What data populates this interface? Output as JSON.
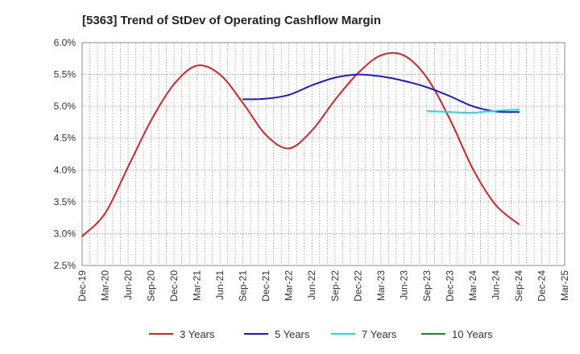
{
  "chart_data": {
    "type": "line",
    "title": "[5363]  Trend of StDev of Operating Cashflow Margin",
    "xlabel": "",
    "ylabel": "",
    "x_ticks": [
      "Dec-19",
      "Mar-20",
      "Jun-20",
      "Sep-20",
      "Dec-20",
      "Mar-21",
      "Jun-21",
      "Sep-21",
      "Dec-21",
      "Mar-22",
      "Jun-22",
      "Sep-22",
      "Dec-22",
      "Mar-23",
      "Jun-23",
      "Sep-23",
      "Dec-23",
      "Mar-24",
      "Jun-24",
      "Sep-24",
      "Dec-24",
      "Mar-25"
    ],
    "y_ticks": [
      "2.5%",
      "3.0%",
      "3.5%",
      "4.0%",
      "4.5%",
      "5.0%",
      "5.5%",
      "6.0%"
    ],
    "ylim": [
      2.5,
      6.0
    ],
    "grid": true,
    "legend_position": "bottom",
    "series": [
      {
        "name": "3 Years",
        "color": "#dd2222",
        "points": [
          [
            "Dec-19",
            2.96
          ],
          [
            "Mar-20",
            3.32
          ],
          [
            "Jun-20",
            4.05
          ],
          [
            "Sep-20",
            4.78
          ],
          [
            "Dec-20",
            5.35
          ],
          [
            "Mar-21",
            5.64
          ],
          [
            "Jun-21",
            5.5
          ],
          [
            "Sep-21",
            5.05
          ],
          [
            "Dec-21",
            4.55
          ],
          [
            "Mar-22",
            4.34
          ],
          [
            "Jun-22",
            4.62
          ],
          [
            "Sep-22",
            5.1
          ],
          [
            "Dec-22",
            5.52
          ],
          [
            "Mar-23",
            5.8
          ],
          [
            "Jun-23",
            5.8
          ],
          [
            "Sep-23",
            5.45
          ],
          [
            "Dec-23",
            4.8
          ],
          [
            "Mar-24",
            4.02
          ],
          [
            "Jun-24",
            3.45
          ],
          [
            "Sep-24",
            3.15
          ]
        ]
      },
      {
        "name": "5 Years",
        "color": "#1a1acc",
        "points": [
          [
            "Sep-21",
            5.11
          ],
          [
            "Dec-21",
            5.12
          ],
          [
            "Mar-22",
            5.18
          ],
          [
            "Jun-22",
            5.33
          ],
          [
            "Sep-22",
            5.45
          ],
          [
            "Dec-22",
            5.5
          ],
          [
            "Mar-23",
            5.47
          ],
          [
            "Jun-23",
            5.4
          ],
          [
            "Sep-23",
            5.3
          ],
          [
            "Dec-23",
            5.16
          ],
          [
            "Mar-24",
            5.0
          ],
          [
            "Jun-24",
            4.92
          ],
          [
            "Sep-24",
            4.91
          ]
        ]
      },
      {
        "name": "7 Years",
        "color": "#22dddd",
        "points": [
          [
            "Sep-23",
            4.93
          ],
          [
            "Dec-23",
            4.91
          ],
          [
            "Mar-24",
            4.9
          ],
          [
            "Jun-24",
            4.93
          ],
          [
            "Sep-24",
            4.95
          ]
        ]
      },
      {
        "name": "10 Years",
        "color": "#228822",
        "points": []
      }
    ]
  }
}
